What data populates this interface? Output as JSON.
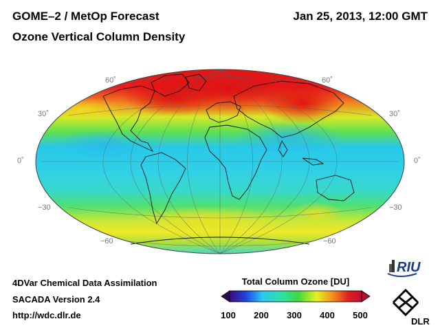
{
  "header": {
    "title": "GOME–2 / MetOp Forecast",
    "subtitle": "Ozone Vertical Column Density",
    "datetime": "Jan 25, 2013, 12:00 GMT"
  },
  "map": {
    "projection": "Hammer-Aitoff",
    "lat_labels_left": [
      "60˚",
      "30˚",
      "0˚",
      "−30",
      "−60"
    ],
    "lat_labels_right": [
      "60˚",
      "30˚",
      "0˚",
      "−30",
      "−60"
    ]
  },
  "footer": {
    "line1": "4DVar Chemical Data Assimilation",
    "line2": "SACADA Version 2.4",
    "line3": "http://wdc.dlr.de"
  },
  "colorbar": {
    "title": "Total Column Ozone [DU]",
    "ticks": [
      "100",
      "200",
      "300",
      "400",
      "500"
    ],
    "min": 100,
    "max": 500
  },
  "logos": {
    "riu": "RIU",
    "dlr": "DLR"
  },
  "colors": {
    "low": "#3a0d7a",
    "mid_low": "#2fd0e8",
    "mid": "#3ed84a",
    "mid_high": "#f0f018",
    "high": "#e01818"
  }
}
